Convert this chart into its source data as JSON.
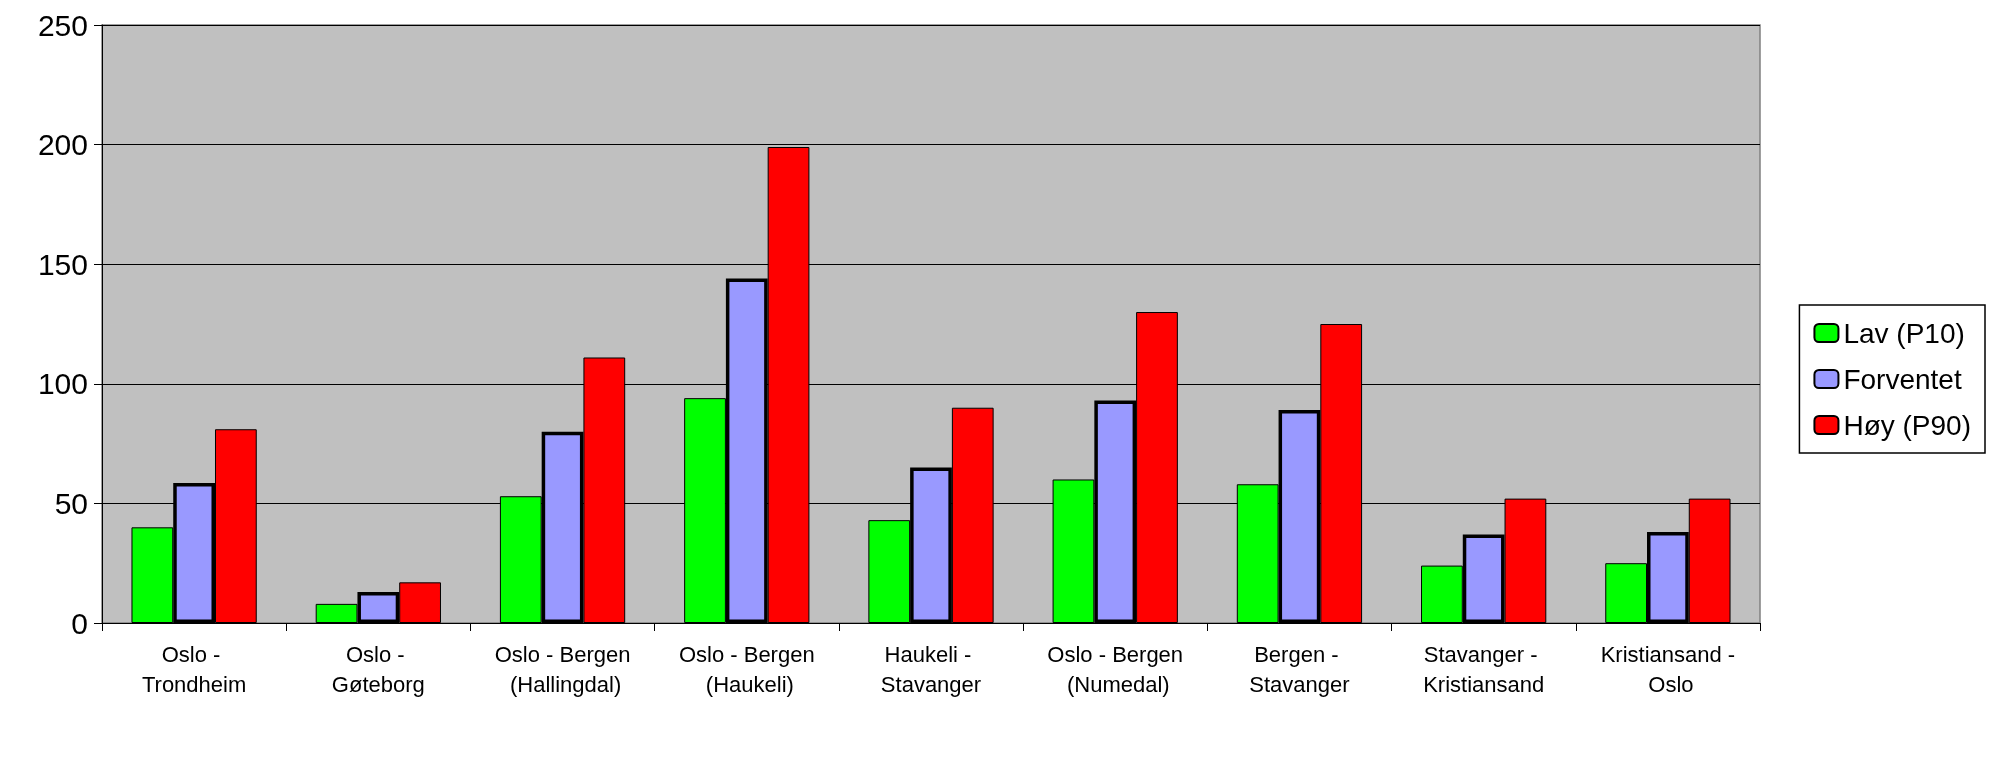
{
  "chart_data": {
    "type": "bar",
    "categories": [
      "Oslo - Trondheim",
      "Oslo - Gøteborg",
      "Oslo - Bergen (Hallingdal)",
      "Oslo - Bergen (Haukeli)",
      "Haukeli - Stavanger",
      "Oslo - Bergen (Numedal)",
      "Bergen - Stavanger",
      "Stavanger - Kristiansand",
      "Kristiansand - Oslo"
    ],
    "series": [
      {
        "name": "Lav (P10)",
        "color": "#00ff00",
        "values": [
          40,
          8,
          53,
          94,
          43,
          60,
          58,
          24,
          25
        ]
      },
      {
        "name": "Forventet",
        "color": "#9999ff",
        "values": [
          58.5,
          13,
          80,
          144,
          65,
          93,
          89,
          37,
          38
        ]
      },
      {
        "name": "Høy (P90)",
        "color": "#ff0000",
        "values": [
          81,
          17,
          111,
          199,
          90,
          130,
          125,
          52,
          52
        ]
      }
    ],
    "ylim": [
      0,
      250
    ],
    "yticks": [
      0,
      50,
      100,
      150,
      200,
      250
    ],
    "grid": "y",
    "legend": "right"
  }
}
